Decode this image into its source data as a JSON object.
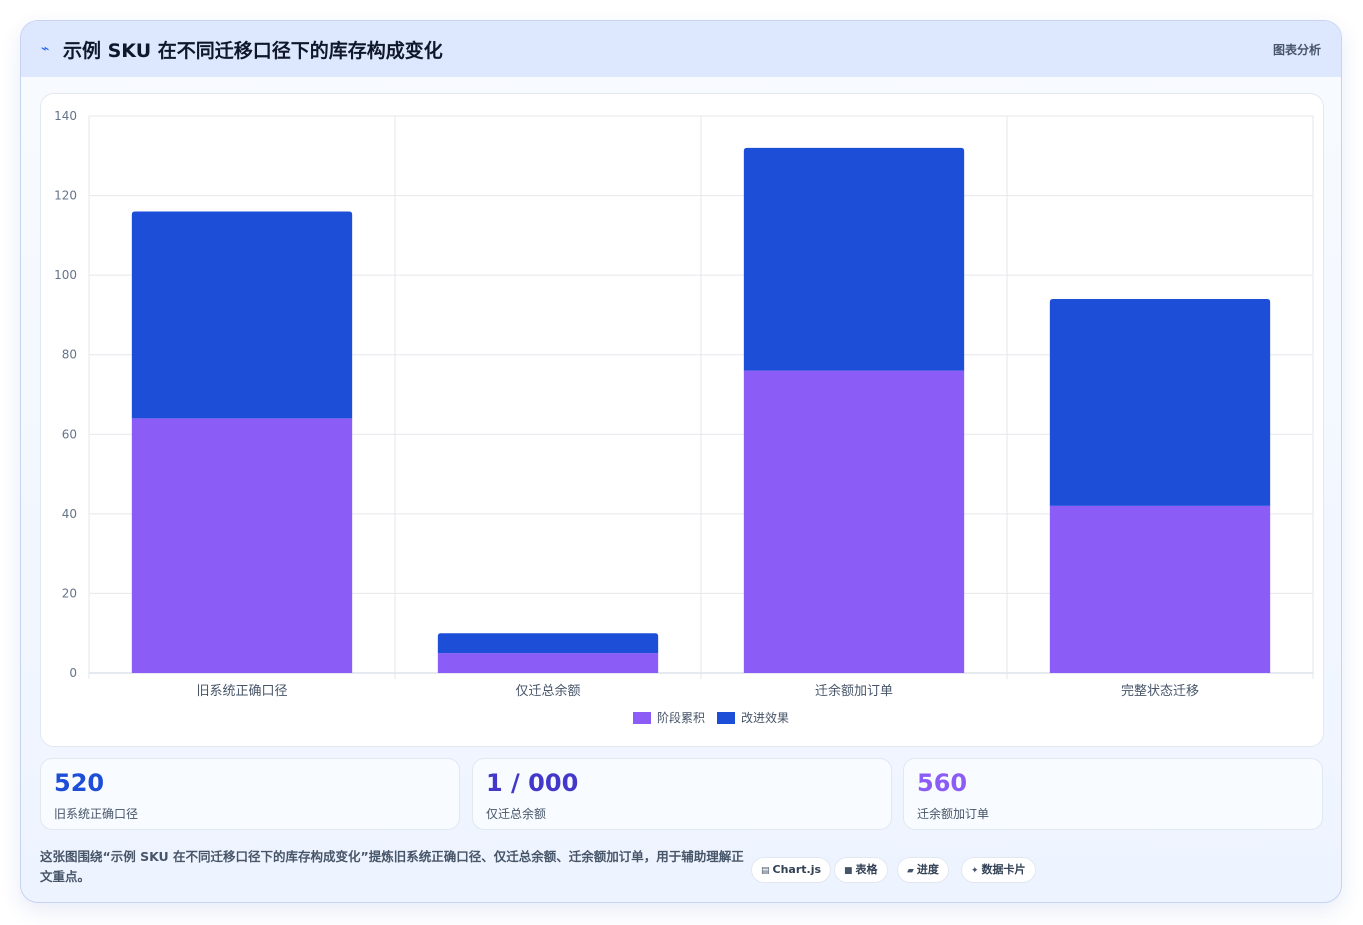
{
  "header": {
    "icon": "bolt-icon",
    "title": "示例 SKU 在不同迁移口径下的库存构成变化",
    "tag": "图表分析"
  },
  "chart_data": {
    "type": "bar",
    "stacked": true,
    "categories": [
      "旧系统正确口径",
      "仅迁总余额",
      "迁余额加订单",
      "完整状态迁移"
    ],
    "series": [
      {
        "name": "阶段累积",
        "values": [
          64,
          5,
          76,
          42
        ],
        "color": "#8b5cf6"
      },
      {
        "name": "改进效果",
        "values": [
          52,
          5,
          56,
          52
        ],
        "color": "#1d4ed8"
      }
    ],
    "ylim": [
      0,
      140
    ],
    "yticks": [
      0,
      20,
      40,
      60,
      80,
      100,
      120,
      140
    ],
    "legend_position": "bottom",
    "grid": true
  },
  "stats": [
    {
      "value": "520",
      "label": "旧系统正确口径",
      "color": "#1d4ed8"
    },
    {
      "value": "1 / 000",
      "label": "仅迁总余额",
      "color": "#4338ca"
    },
    {
      "value": "560",
      "label": "迁余额加订单",
      "color": "#8b5cf6"
    }
  ],
  "footer": {
    "description": "这张图围绕“示例 SKU 在不同迁移口径下的库存构成变化”提炼旧系统正确口径、仅迁总余额、迁余额加订单，用于辅助理解正文重点。",
    "pills": [
      {
        "icon": "chart-icon",
        "glyph": "▤",
        "label": "Chart.js"
      },
      {
        "icon": "table-icon",
        "glyph": "■",
        "label": "表格"
      },
      {
        "icon": "progress-icon",
        "glyph": "▰",
        "label": "进度"
      },
      {
        "icon": "sparkle-icon",
        "glyph": "✦",
        "label": "数据卡片"
      }
    ]
  }
}
